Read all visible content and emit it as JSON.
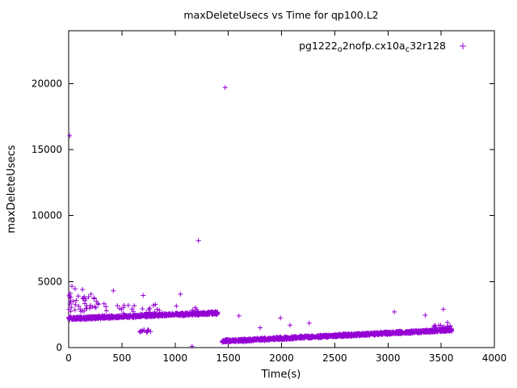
{
  "page": {
    "background": "#ffffff",
    "foreground": "#000000"
  },
  "chart_data": {
    "type": "scatter",
    "title": "maxDeleteUsecs vs Time for qp100.L2",
    "xlabel": "Time(s)",
    "ylabel": "maxDeleteUsecs",
    "xlim": [
      0,
      4000
    ],
    "ylim": [
      0,
      24000
    ],
    "x_ticks": [
      0,
      500,
      1000,
      1500,
      2000,
      2500,
      3000,
      3500,
      4000
    ],
    "y_ticks": [
      0,
      5000,
      10000,
      15000,
      20000
    ],
    "grid": false,
    "legend_position": "top-right-inside",
    "series": [
      {
        "name": "pg1222_o2nofp.cx10a_c32r128",
        "label_parts": [
          {
            "text": "pg1222",
            "sub": false
          },
          {
            "text": "o",
            "sub": true
          },
          {
            "text": "2nofp.cx10a",
            "sub": false
          },
          {
            "text": "c",
            "sub": true
          },
          {
            "text": "32r128",
            "sub": false
          }
        ],
        "color": "#9400d3",
        "marker": "plus",
        "bands": [
          {
            "x0": 0,
            "x1": 1400,
            "y0": 2200,
            "y1": 2620,
            "jitter": 130,
            "count": 950
          },
          {
            "x0": 1440,
            "x1": 3600,
            "y0": 480,
            "y1": 1330,
            "jitter": 120,
            "count": 1500
          }
        ],
        "sparse": [
          {
            "x0": 0,
            "x1": 260,
            "y0": 2700,
            "y1": 4000,
            "count": 30
          },
          {
            "x0": 260,
            "x1": 820,
            "y0": 2600,
            "y1": 3400,
            "count": 20
          },
          {
            "x0": 820,
            "x1": 1360,
            "y0": 2750,
            "y1": 3300,
            "count": 6
          },
          {
            "x0": 660,
            "x1": 770,
            "y0": 1150,
            "y1": 1350,
            "count": 14
          },
          {
            "x0": 3430,
            "x1": 3600,
            "y0": 1400,
            "y1": 1700,
            "count": 18
          }
        ],
        "outliers": [
          [
            10,
            16050
          ],
          [
            1470,
            19700
          ],
          [
            1220,
            8100
          ],
          [
            1160,
            100
          ],
          [
            15,
            4100
          ],
          [
            18,
            3800
          ],
          [
            22,
            3500
          ],
          [
            12,
            3300
          ],
          [
            25,
            3050
          ],
          [
            30,
            4650
          ],
          [
            60,
            4450
          ],
          [
            130,
            4400
          ],
          [
            210,
            4050
          ],
          [
            420,
            4300
          ],
          [
            700,
            3950
          ],
          [
            1050,
            4050
          ],
          [
            90,
            3900
          ],
          [
            160,
            3700
          ],
          [
            260,
            3500
          ],
          [
            560,
            3200
          ],
          [
            350,
            3100
          ],
          [
            480,
            2950
          ],
          [
            1600,
            2400
          ],
          [
            1800,
            1500
          ],
          [
            1990,
            2250
          ],
          [
            2080,
            1700
          ],
          [
            2260,
            1850
          ],
          [
            3060,
            2700
          ],
          [
            3350,
            2450
          ],
          [
            3520,
            2900
          ],
          [
            3560,
            1900
          ]
        ]
      }
    ]
  }
}
